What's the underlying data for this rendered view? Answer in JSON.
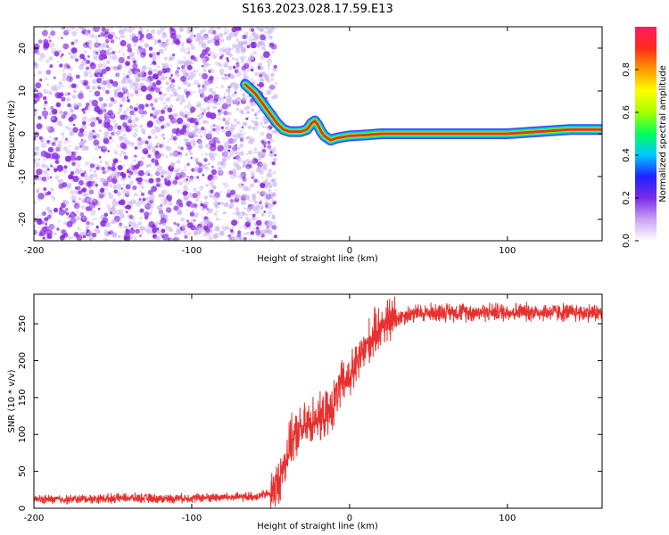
{
  "figure_title": "S163.2023.028.17.59.E13",
  "colors": {
    "snr_line": "#e8302e",
    "ridge_core": "#e8302e",
    "noise_dot": "#8a2be2",
    "noise_dot_faint": "#c8b0f0",
    "axis": "#000000"
  },
  "chart_data": [
    {
      "type": "heatmap",
      "title": "S163.2023.028.17.59.E13",
      "xlabel": "Height of straight line (km)",
      "ylabel": "Frequency (Hz)",
      "xlim": [
        -200,
        160
      ],
      "ylim": [
        -25,
        25
      ],
      "xticks": [
        -200,
        -100,
        0,
        100
      ],
      "yticks": [
        -20,
        -10,
        0,
        10,
        20
      ],
      "grid": false,
      "noise_region_x": [
        -200,
        -50
      ],
      "ridge": {
        "x": [
          -66,
          -60,
          -55,
          -50,
          -46,
          -42,
          -38,
          -35,
          -31,
          -27,
          -24,
          -22,
          -20,
          -18,
          -16,
          -14,
          -12,
          -8,
          -5,
          0,
          10,
          20,
          40,
          60,
          80,
          100,
          120,
          140,
          160
        ],
        "y": [
          11.5,
          9.5,
          7,
          4.5,
          2.5,
          1,
          0.5,
          0.5,
          0.5,
          1,
          2.5,
          3,
          2,
          0.5,
          -0.5,
          -1,
          -1.5,
          -1,
          -0.8,
          -0.5,
          -0.3,
          0,
          0,
          0,
          0,
          0,
          0.5,
          1,
          1
        ]
      },
      "colorbar": {
        "label": "Normalized spectral amplitude",
        "range": [
          0,
          1
        ],
        "ticks": [
          "0.0",
          "0.2",
          "0.4",
          "0.6",
          "0.8"
        ],
        "stops": [
          "#ffffff",
          "#c9a3f2",
          "#7a2ae6",
          "#1e22ff",
          "#00c8ff",
          "#00ff5a",
          "#a6ff00",
          "#ffff00",
          "#ff9900",
          "#ff2a1a",
          "#ff1a66"
        ]
      }
    },
    {
      "type": "line",
      "xlabel": "Height of straight line (km)",
      "ylabel": "SNR (10 * v/v)",
      "xlim": [
        -200,
        160
      ],
      "ylim": [
        0,
        290
      ],
      "xticks": [
        -200,
        -100,
        0,
        100
      ],
      "yticks": [
        0,
        50,
        100,
        150,
        200,
        250
      ],
      "grid": false,
      "series": [
        {
          "x": [
            -200,
            -180,
            -160,
            -140,
            -120,
            -100,
            -80,
            -70,
            -60,
            -50,
            -45,
            -40,
            -37,
            -34,
            -31,
            -28,
            -25,
            -22,
            -19,
            -16,
            -13,
            -10,
            -7,
            -4,
            -1,
            2,
            5,
            8,
            11,
            14,
            17,
            20,
            25,
            30,
            35,
            40,
            50,
            60,
            80,
            100,
            120,
            140,
            160
          ],
          "y": [
            12,
            12,
            13,
            14,
            13,
            14,
            15,
            15,
            16,
            20,
            35,
            70,
            90,
            100,
            105,
            110,
            115,
            125,
            120,
            125,
            130,
            140,
            160,
            170,
            175,
            185,
            195,
            210,
            220,
            230,
            240,
            248,
            254,
            258,
            262,
            264,
            265,
            266,
            266,
            266,
            266,
            265,
            265
          ]
        }
      ]
    }
  ]
}
